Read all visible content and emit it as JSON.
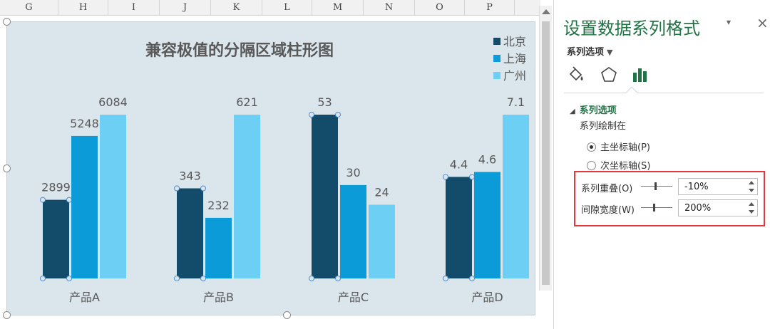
{
  "sheet": {
    "columns": [
      "G",
      "H",
      "I",
      "J",
      "K",
      "L",
      "M",
      "N",
      "O",
      "P"
    ]
  },
  "chart": {
    "title": "兼容极值的分隔区域柱形图",
    "legend": [
      {
        "name": "北京",
        "color": "#124c6a"
      },
      {
        "name": "上海",
        "color": "#0a9bd8"
      },
      {
        "name": "广州",
        "color": "#6ccff3"
      }
    ]
  },
  "chart_data": {
    "type": "bar",
    "title": "兼容极值的分隔区域柱形图",
    "categories": [
      "产品A",
      "产品B",
      "产品C",
      "产品D"
    ],
    "series": [
      {
        "name": "北京",
        "color": "#124c6a",
        "labels": [
          "2899",
          "343",
          "53",
          "4.4"
        ],
        "relative_heights": [
          0.48,
          0.55,
          1.0,
          0.62
        ]
      },
      {
        "name": "上海",
        "color": "#0a9bd8",
        "labels": [
          "5248",
          "232",
          "30",
          "4.6"
        ],
        "relative_heights": [
          0.87,
          0.37,
          0.57,
          0.65
        ]
      },
      {
        "name": "广州",
        "color": "#6ccff3",
        "labels": [
          "6084",
          "621",
          "24",
          "7.1"
        ],
        "relative_heights": [
          1.0,
          1.0,
          0.45,
          1.0
        ]
      }
    ],
    "legend_position": "top-right",
    "grid": false
  },
  "pane": {
    "title": "设置数据系列格式",
    "dropdown_caret": "▾",
    "close": "×",
    "options_dropdown": "系列选项",
    "section_title": "系列选项",
    "plot_on_label": "系列绘制在",
    "primary_axis": "主坐标轴(P)",
    "secondary_axis": "次坐标轴(S)",
    "overlap_label": "系列重叠(O)",
    "overlap_value": "-10%",
    "overlap_level": 0.45,
    "gap_label": "间隙宽度(W)",
    "gap_value": "200%",
    "gap_level": 0.4
  }
}
